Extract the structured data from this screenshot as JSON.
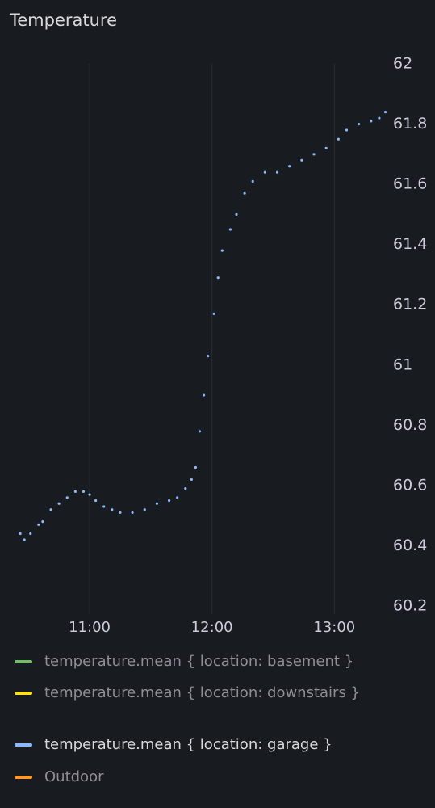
{
  "chart_data": {
    "type": "scatter",
    "title": "Temperature",
    "x": [
      "10:26",
      "10:28",
      "10:31",
      "10:35",
      "10:37",
      "10:41",
      "10:45",
      "10:49",
      "10:53",
      "10:57",
      "11:00",
      "11:03",
      "11:07",
      "11:11",
      "11:15",
      "11:21",
      "11:27",
      "11:33",
      "11:39",
      "11:43",
      "11:47",
      "11:50",
      "11:52",
      "11:54",
      "11:56",
      "11:58",
      "12:01",
      "12:03",
      "12:05",
      "12:09",
      "12:12",
      "12:16",
      "12:20",
      "12:26",
      "12:32",
      "12:38",
      "12:44",
      "12:50",
      "12:56",
      "13:02",
      "13:06",
      "13:12",
      "13:18",
      "13:22",
      "13:25"
    ],
    "series": [
      {
        "name": "temperature.mean { location: basement }",
        "color": "#73bf69",
        "values": [
          null,
          null,
          null,
          null,
          null,
          null,
          null,
          null,
          null,
          null,
          null,
          null,
          null,
          null,
          null,
          null,
          null,
          null,
          null,
          null,
          null,
          null,
          null,
          null,
          null,
          null,
          null,
          null,
          null,
          null,
          null,
          null,
          null,
          null,
          null,
          null,
          null,
          null,
          null,
          null,
          null,
          null,
          null,
          null,
          null
        ]
      },
      {
        "name": "temperature.mean { location: downstairs }",
        "color": "#fade2a",
        "values": [
          null,
          null,
          null,
          null,
          null,
          null,
          null,
          null,
          null,
          null,
          null,
          null,
          null,
          null,
          null,
          null,
          null,
          null,
          null,
          null,
          null,
          null,
          null,
          null,
          null,
          null,
          null,
          null,
          null,
          null,
          null,
          null,
          null,
          null,
          null,
          null,
          null,
          null,
          null,
          null,
          null,
          null,
          null,
          null,
          null
        ]
      },
      {
        "name": "temperature.mean { location: garage }",
        "color": "#8ab8ff",
        "values": [
          60.44,
          60.42,
          60.44,
          60.47,
          60.48,
          60.52,
          60.54,
          60.56,
          60.58,
          60.58,
          60.57,
          60.55,
          60.53,
          60.52,
          60.51,
          60.51,
          60.52,
          60.54,
          60.55,
          60.56,
          60.59,
          60.62,
          60.66,
          60.78,
          60.9,
          61.03,
          61.17,
          61.29,
          61.38,
          61.45,
          61.5,
          61.57,
          61.61,
          61.64,
          61.64,
          61.66,
          61.68,
          61.7,
          61.72,
          61.75,
          61.78,
          61.8,
          61.81,
          61.82,
          61.84
        ]
      },
      {
        "name": "Outdoor",
        "color": "#ff9830",
        "values": [
          null,
          null,
          null,
          null,
          null,
          null,
          null,
          null,
          null,
          null,
          null,
          null,
          null,
          null,
          null,
          null,
          null,
          null,
          null,
          null,
          null,
          null,
          null,
          null,
          null,
          null,
          null,
          null,
          null,
          null,
          null,
          null,
          null,
          null,
          null,
          null,
          null,
          null,
          null,
          null,
          null,
          null,
          null,
          null,
          null
        ]
      }
    ],
    "xlim": [
      "10:22",
      "13:26"
    ],
    "xticks": [
      "11:00",
      "12:00",
      "13:00"
    ],
    "ylim": [
      60.2,
      62
    ],
    "yticks": [
      60.2,
      60.4,
      60.6,
      60.8,
      61,
      61.2,
      61.4,
      61.6,
      61.8,
      62
    ],
    "grid": true
  }
}
